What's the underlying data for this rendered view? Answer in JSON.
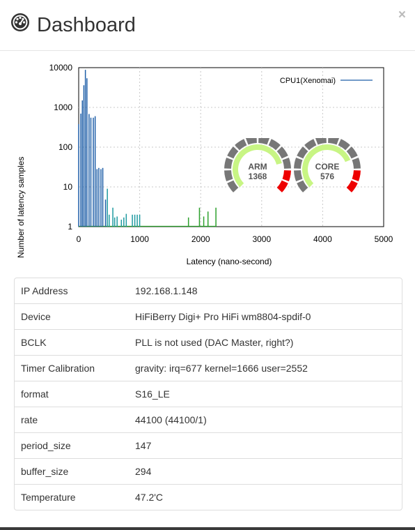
{
  "header": {
    "title": "Dashboard",
    "close_label": "×"
  },
  "chart_data": {
    "type": "bar",
    "title": "",
    "xlabel": "Latency (nano-second)",
    "ylabel": "Number of latency samples",
    "xlim": [
      0,
      5000
    ],
    "ylim": [
      1,
      10000
    ],
    "y_scale": "log",
    "x_ticks": [
      "0",
      "1000",
      "2000",
      "3000",
      "4000",
      "5000"
    ],
    "y_ticks": [
      "1",
      "10",
      "100",
      "1000",
      "10000"
    ],
    "grid": true,
    "legend": "top-right",
    "series": [
      {
        "name": "CPU1(Xenomai)",
        "color": "#1f5fa8",
        "points": [
          [
            0,
            380
          ],
          [
            35,
            700
          ],
          [
            60,
            1500
          ],
          [
            85,
            3600
          ],
          [
            110,
            8800
          ],
          [
            135,
            5400
          ],
          [
            170,
            680
          ],
          [
            200,
            550
          ],
          [
            240,
            550
          ],
          [
            270,
            600
          ],
          [
            300,
            28
          ],
          [
            330,
            30
          ],
          [
            365,
            28
          ],
          [
            395,
            30
          ],
          [
            440,
            4.8
          ],
          [
            470,
            9
          ],
          [
            500,
            2
          ],
          [
            560,
            3
          ],
          [
            590,
            1.7
          ],
          [
            630,
            1.8
          ],
          [
            700,
            1.5
          ],
          [
            740,
            1.7
          ],
          [
            780,
            2.1
          ],
          [
            880,
            2
          ],
          [
            920,
            2
          ],
          [
            960,
            2
          ],
          [
            1000,
            2
          ],
          [
            1800,
            1.7
          ],
          [
            1980,
            3
          ],
          [
            2050,
            1.8
          ],
          [
            2120,
            2.4
          ],
          [
            2250,
            3
          ]
        ]
      }
    ]
  },
  "gauges": [
    {
      "name": "arm",
      "label": "ARM",
      "value": "1368",
      "fill": 0.78
    },
    {
      "name": "core",
      "label": "CORE",
      "value": "576",
      "fill": 0.75
    }
  ],
  "info": [
    {
      "key": "IP Address",
      "value": "192.168.1.148"
    },
    {
      "key": "Device",
      "value": "HiFiBerry Digi+ Pro HiFi wm8804-spdif-0"
    },
    {
      "key": "BCLK",
      "value": "PLL is not used (DAC Master, right?)"
    },
    {
      "key": "Timer Calibration",
      "value": "gravity: irq=677 kernel=1666 user=2552"
    },
    {
      "key": "format",
      "value": "S16_LE"
    },
    {
      "key": "rate",
      "value": "44100 (44100/1)"
    },
    {
      "key": "period_size",
      "value": "147"
    },
    {
      "key": "buffer_size",
      "value": "294"
    },
    {
      "key": "Temperature",
      "value": "47.2'C"
    }
  ]
}
